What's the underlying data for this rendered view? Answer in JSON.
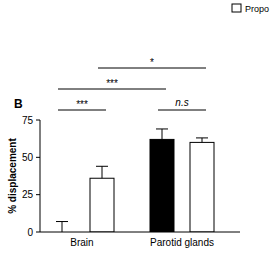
{
  "chart_data": {
    "type": "bar",
    "panel_label": "B",
    "y_label": "% displacement",
    "categories": [
      "Brain",
      "Parotid glands"
    ],
    "series": [
      {
        "color": "#000000",
        "values": [
          0,
          62
        ],
        "errors": [
          7,
          7
        ]
      },
      {
        "name": "Propo",
        "color": "#ffffff",
        "values": [
          36,
          60
        ],
        "errors": [
          8,
          3
        ]
      }
    ],
    "ylim": [
      0,
      75
    ],
    "yticks": [
      0,
      25,
      50,
      75
    ],
    "legend": "upper right",
    "annotations": [
      {
        "label": "***",
        "from": [
          0,
          0
        ],
        "to": [
          0,
          1
        ]
      },
      {
        "label": "n.s",
        "from": [
          1,
          0
        ],
        "to": [
          1,
          1
        ]
      },
      {
        "label": "***",
        "from": [
          0,
          0
        ],
        "to": [
          1,
          0
        ]
      },
      {
        "label": "*",
        "from": [
          0,
          1
        ],
        "to": [
          1,
          1
        ]
      }
    ]
  }
}
